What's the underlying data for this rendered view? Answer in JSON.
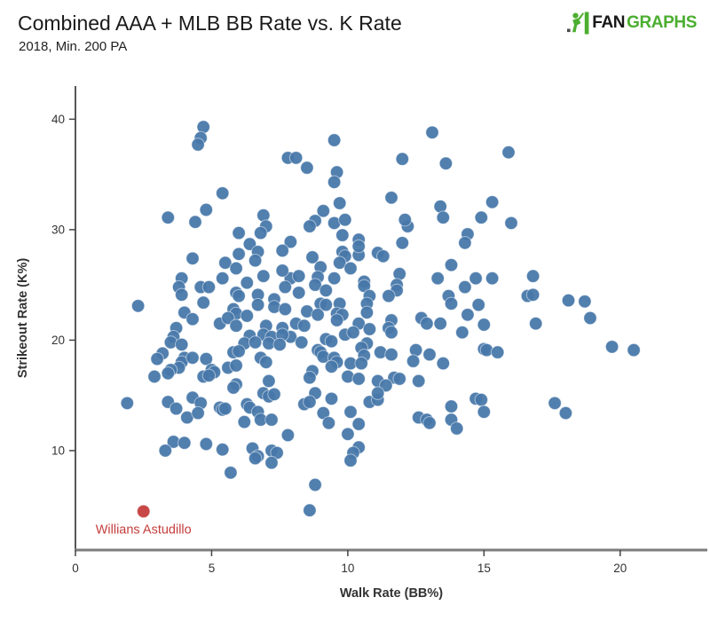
{
  "header": {
    "title": "Combined AAA + MLB BB Rate vs. K Rate",
    "subtitle": "2018, Min. 200 PA"
  },
  "logo": {
    "fan": "FAN",
    "graphs": "GRAPHS",
    "icon": "batter-icon",
    "green": "#4cae30",
    "black": "#181818"
  },
  "colors": {
    "point_blue": "#4878aa",
    "highlight_red": "#c43e3c",
    "axis_gray": "#7d7d7d",
    "tick_label_gray": "#333333"
  },
  "chart_data": {
    "type": "scatter",
    "title": "Combined AAA + MLB BB Rate vs. K Rate",
    "subtitle": "2018, Min. 200 PA",
    "xlabel": "Walk Rate (BB%)",
    "ylabel": "Strikeout Rate (K%)",
    "xlim": [
      0,
      23.2
    ],
    "ylim": [
      1,
      43
    ],
    "xticks": [
      0,
      5,
      10,
      15,
      20
    ],
    "yticks": [
      10,
      20,
      30,
      40
    ],
    "grid": false,
    "legend": "none",
    "series": [
      {
        "name": "players",
        "color": "#4878aa",
        "points": [
          [
            4.7,
            39.3
          ],
          [
            4.6,
            38.3
          ],
          [
            4.5,
            37.7
          ],
          [
            5.4,
            33.3
          ],
          [
            4.8,
            31.8
          ],
          [
            3.4,
            31.1
          ],
          [
            4.4,
            30.7
          ],
          [
            6.9,
            31.3
          ],
          [
            7.0,
            30.3
          ],
          [
            6.8,
            29.7
          ],
          [
            6.0,
            29.7
          ],
          [
            7.8,
            36.5
          ],
          [
            9.5,
            38.1
          ],
          [
            13.1,
            38.8
          ],
          [
            8.1,
            36.5
          ],
          [
            12.0,
            36.4
          ],
          [
            13.6,
            36.0
          ],
          [
            8.5,
            35.6
          ],
          [
            15.9,
            37.0
          ],
          [
            9.6,
            35.2
          ],
          [
            9.5,
            34.3
          ],
          [
            11.6,
            32.9
          ],
          [
            9.7,
            32.4
          ],
          [
            15.3,
            32.5
          ],
          [
            13.4,
            32.1
          ],
          [
            9.1,
            31.7
          ],
          [
            13.5,
            31.1
          ],
          [
            8.8,
            30.8
          ],
          [
            9.5,
            30.6
          ],
          [
            9.9,
            30.9
          ],
          [
            8.6,
            30.3
          ],
          [
            12.2,
            30.3
          ],
          [
            14.4,
            29.6
          ],
          [
            9.8,
            29.5
          ],
          [
            10.4,
            29.1
          ],
          [
            12.1,
            30.9
          ],
          [
            16.0,
            30.6
          ],
          [
            10.4,
            27.7
          ],
          [
            11.1,
            27.9
          ],
          [
            11.3,
            27.6
          ],
          [
            12.0,
            28.8
          ],
          [
            14.9,
            31.1
          ],
          [
            8.7,
            27.5
          ],
          [
            13.8,
            26.8
          ],
          [
            7.9,
            28.9
          ],
          [
            10.4,
            28.5
          ],
          [
            14.3,
            28.8
          ],
          [
            9.8,
            28.0
          ],
          [
            9.9,
            27.6
          ],
          [
            9.7,
            27.0
          ],
          [
            9.0,
            26.6
          ],
          [
            10.1,
            26.5
          ],
          [
            7.9,
            25.6
          ],
          [
            8.2,
            25.8
          ],
          [
            8.9,
            25.7
          ],
          [
            9.5,
            25.6
          ],
          [
            8.8,
            25.0
          ],
          [
            8.2,
            24.3
          ],
          [
            9.2,
            24.5
          ],
          [
            10.6,
            25.3
          ],
          [
            10.6,
            24.9
          ],
          [
            11.9,
            26.0
          ],
          [
            13.3,
            25.6
          ],
          [
            14.7,
            25.6
          ],
          [
            15.3,
            25.6
          ],
          [
            14.3,
            24.8
          ],
          [
            11.8,
            25.0
          ],
          [
            11.8,
            24.5
          ],
          [
            10.8,
            24.0
          ],
          [
            11.5,
            24.0
          ],
          [
            10.7,
            23.3
          ],
          [
            9.0,
            23.3
          ],
          [
            9.2,
            23.2
          ],
          [
            9.7,
            23.3
          ],
          [
            13.7,
            24.0
          ],
          [
            13.8,
            23.3
          ],
          [
            14.8,
            23.2
          ],
          [
            8.5,
            22.6
          ],
          [
            8.9,
            22.3
          ],
          [
            9.6,
            22.4
          ],
          [
            9.8,
            22.3
          ],
          [
            10.7,
            22.5
          ],
          [
            8.1,
            21.5
          ],
          [
            8.4,
            21.3
          ],
          [
            9.6,
            21.8
          ],
          [
            10.4,
            21.5
          ],
          [
            10.8,
            21.0
          ],
          [
            11.6,
            21.8
          ],
          [
            11.5,
            21.1
          ],
          [
            11.6,
            20.7
          ],
          [
            12.7,
            22.0
          ],
          [
            12.9,
            21.5
          ],
          [
            13.4,
            21.5
          ],
          [
            14.4,
            22.3
          ],
          [
            15.0,
            21.4
          ],
          [
            7.9,
            20.3
          ],
          [
            8.3,
            19.8
          ],
          [
            9.2,
            20.1
          ],
          [
            9.4,
            19.9
          ],
          [
            8.9,
            19.1
          ],
          [
            9.0,
            18.9
          ],
          [
            9.1,
            18.5
          ],
          [
            9.5,
            18.4
          ],
          [
            9.6,
            18.0
          ],
          [
            9.9,
            20.5
          ],
          [
            10.2,
            20.7
          ],
          [
            10.7,
            19.7
          ],
          [
            10.5,
            19.3
          ],
          [
            10.6,
            18.6
          ],
          [
            11.2,
            18.9
          ],
          [
            11.6,
            18.7
          ],
          [
            12.5,
            19.1
          ],
          [
            13.0,
            18.7
          ],
          [
            14.2,
            20.7
          ],
          [
            15.0,
            19.2
          ],
          [
            15.1,
            19.1
          ],
          [
            13.5,
            17.9
          ],
          [
            12.4,
            18.1
          ],
          [
            9.4,
            17.6
          ],
          [
            10.1,
            17.9
          ],
          [
            10.5,
            17.9
          ],
          [
            8.7,
            17.2
          ],
          [
            8.6,
            16.6
          ],
          [
            10.0,
            16.7
          ],
          [
            10.4,
            16.5
          ],
          [
            11.1,
            16.3
          ],
          [
            11.7,
            16.6
          ],
          [
            11.9,
            16.5
          ],
          [
            12.6,
            16.3
          ],
          [
            11.4,
            15.9
          ],
          [
            8.8,
            15.2
          ],
          [
            9.4,
            14.7
          ],
          [
            6.4,
            28.7
          ],
          [
            6.0,
            27.8
          ],
          [
            6.7,
            28.0
          ],
          [
            7.6,
            28.1
          ],
          [
            4.3,
            27.4
          ],
          [
            5.5,
            27.0
          ],
          [
            6.6,
            27.2
          ],
          [
            5.9,
            26.5
          ],
          [
            7.6,
            26.3
          ],
          [
            3.9,
            25.6
          ],
          [
            5.4,
            25.6
          ],
          [
            6.3,
            25.2
          ],
          [
            6.9,
            25.8
          ],
          [
            3.8,
            24.8
          ],
          [
            4.6,
            24.8
          ],
          [
            4.9,
            24.8
          ],
          [
            3.9,
            24.1
          ],
          [
            5.9,
            24.3
          ],
          [
            6.0,
            24.0
          ],
          [
            6.7,
            24.1
          ],
          [
            7.3,
            23.7
          ],
          [
            7.7,
            24.8
          ],
          [
            2.3,
            23.1
          ],
          [
            4.7,
            23.4
          ],
          [
            5.8,
            22.8
          ],
          [
            5.9,
            22.4
          ],
          [
            6.7,
            23.2
          ],
          [
            7.3,
            23.0
          ],
          [
            7.7,
            22.8
          ],
          [
            4.0,
            22.5
          ],
          [
            4.3,
            21.9
          ],
          [
            5.3,
            21.5
          ],
          [
            5.6,
            22.0
          ],
          [
            6.3,
            22.2
          ],
          [
            5.9,
            21.3
          ],
          [
            7.0,
            21.3
          ],
          [
            7.6,
            21.1
          ],
          [
            3.7,
            21.1
          ],
          [
            6.4,
            20.4
          ],
          [
            6.9,
            20.5
          ],
          [
            7.2,
            20.3
          ],
          [
            7.6,
            20.5
          ],
          [
            3.6,
            20.3
          ],
          [
            3.5,
            19.8
          ],
          [
            3.9,
            19.6
          ],
          [
            6.2,
            19.7
          ],
          [
            6.6,
            19.8
          ],
          [
            7.1,
            19.7
          ],
          [
            7.5,
            19.6
          ],
          [
            3.2,
            18.8
          ],
          [
            3.0,
            18.3
          ],
          [
            4.0,
            18.4
          ],
          [
            3.9,
            18.0
          ],
          [
            4.3,
            18.4
          ],
          [
            4.8,
            18.3
          ],
          [
            5.8,
            18.9
          ],
          [
            6.0,
            19.0
          ],
          [
            6.8,
            18.4
          ],
          [
            7.0,
            18.0
          ],
          [
            3.8,
            17.5
          ],
          [
            3.5,
            17.3
          ],
          [
            5.0,
            17.3
          ],
          [
            5.1,
            17.1
          ],
          [
            5.6,
            17.5
          ],
          [
            5.9,
            17.7
          ],
          [
            2.9,
            16.7
          ],
          [
            3.4,
            17.0
          ],
          [
            4.7,
            16.7
          ],
          [
            4.9,
            16.8
          ],
          [
            5.9,
            16.0
          ],
          [
            5.8,
            15.7
          ],
          [
            7.1,
            16.3
          ],
          [
            16.8,
            25.8
          ],
          [
            16.6,
            24.0
          ],
          [
            16.8,
            24.1
          ],
          [
            18.7,
            23.5
          ],
          [
            18.1,
            23.6
          ],
          [
            18.9,
            22.0
          ],
          [
            16.9,
            21.5
          ],
          [
            19.7,
            19.4
          ],
          [
            20.5,
            19.1
          ],
          [
            15.5,
            18.9
          ],
          [
            1.9,
            14.3
          ],
          [
            3.4,
            14.4
          ],
          [
            3.7,
            13.8
          ],
          [
            4.3,
            14.8
          ],
          [
            4.6,
            14.3
          ],
          [
            4.1,
            13.0
          ],
          [
            4.5,
            13.4
          ],
          [
            5.3,
            13.9
          ],
          [
            5.4,
            13.7
          ],
          [
            5.5,
            13.8
          ],
          [
            6.3,
            14.2
          ],
          [
            6.4,
            13.9
          ],
          [
            6.9,
            15.2
          ],
          [
            7.1,
            14.9
          ],
          [
            7.3,
            15.1
          ],
          [
            6.7,
            13.5
          ],
          [
            6.8,
            12.8
          ],
          [
            6.2,
            12.6
          ],
          [
            7.2,
            12.8
          ],
          [
            7.8,
            11.4
          ],
          [
            3.6,
            10.8
          ],
          [
            4.0,
            10.7
          ],
          [
            3.3,
            10.0
          ],
          [
            4.8,
            10.6
          ],
          [
            5.4,
            10.1
          ],
          [
            6.5,
            10.2
          ],
          [
            6.7,
            9.5
          ],
          [
            6.6,
            9.3
          ],
          [
            7.2,
            10.0
          ],
          [
            7.4,
            9.8
          ],
          [
            7.2,
            8.9
          ],
          [
            5.7,
            8.0
          ],
          [
            8.4,
            14.2
          ],
          [
            8.6,
            14.4
          ],
          [
            9.1,
            13.4
          ],
          [
            9.3,
            12.5
          ],
          [
            10.1,
            13.5
          ],
          [
            10.8,
            14.4
          ],
          [
            11.1,
            14.6
          ],
          [
            11.1,
            15.2
          ],
          [
            10.4,
            12.4
          ],
          [
            10.0,
            11.5
          ],
          [
            10.4,
            10.3
          ],
          [
            10.2,
            9.8
          ],
          [
            10.1,
            9.1
          ],
          [
            12.6,
            13.0
          ],
          [
            12.9,
            12.8
          ],
          [
            13.0,
            12.5
          ],
          [
            13.8,
            14.0
          ],
          [
            13.8,
            12.8
          ],
          [
            14.0,
            12.0
          ],
          [
            14.7,
            14.7
          ],
          [
            14.9,
            14.6
          ],
          [
            15.0,
            13.5
          ],
          [
            8.8,
            6.9
          ],
          [
            8.6,
            4.6
          ],
          [
            17.6,
            14.3
          ],
          [
            18.0,
            13.4
          ]
        ]
      },
      {
        "name": "highlight",
        "color": "#c43e3c",
        "label": "Willians Astudillo",
        "points": [
          [
            2.5,
            4.5
          ]
        ]
      }
    ]
  }
}
